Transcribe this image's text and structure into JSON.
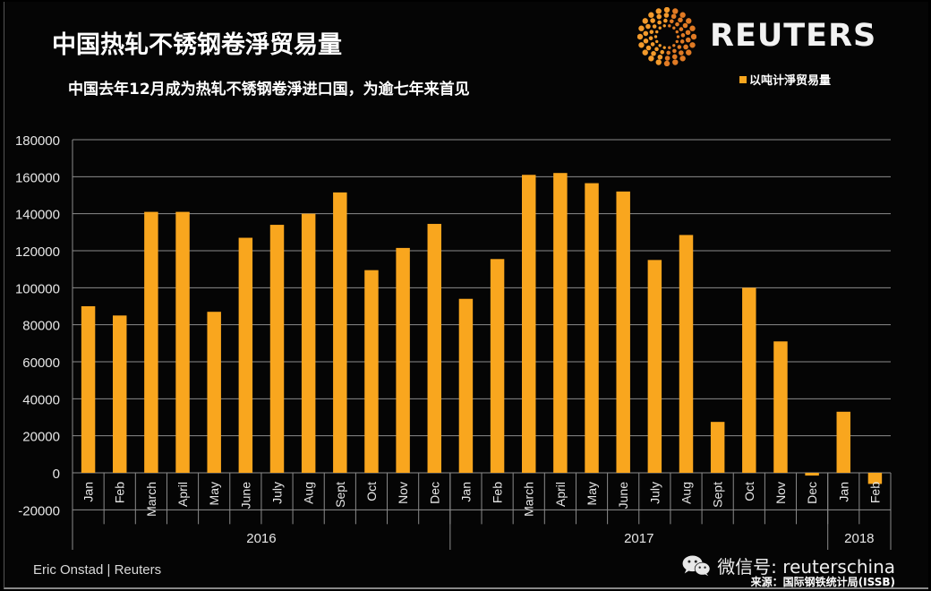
{
  "header": {
    "title": "中国热轧不锈钢卷淨贸易量",
    "subtitle": "中国去年12月成为热轧不锈钢卷淨进口国，为逾七年来首见",
    "brand": "REUTERS",
    "brand_icon": "reuters-dot-logo-icon"
  },
  "footer": {
    "credit": "Eric Onstad | Reuters",
    "wechat_label": "微信号: reuterschina",
    "wechat_icon": "wechat-icon",
    "source": "来源：国际钢铁统计局(ISSB)"
  },
  "colors": {
    "bar": "#F9A61E",
    "background": "#050505",
    "grid": "#8c8c8c",
    "text": "#ffffff"
  },
  "chart_data": {
    "type": "bar",
    "title": "中国热轧不锈钢卷淨贸易量",
    "subtitle": "中国去年12月成为热轧不锈钢卷淨进口国，为逾七年来首见",
    "xlabel": "",
    "ylabel": "",
    "ylim": [
      -20000,
      180000
    ],
    "yticks": [
      -20000,
      0,
      20000,
      40000,
      60000,
      80000,
      100000,
      120000,
      140000,
      160000,
      180000
    ],
    "grid": true,
    "legend": {
      "position": "top-right",
      "entries": [
        "以吨计淨贸易量"
      ]
    },
    "categories": [
      "Jan",
      "Feb",
      "March",
      "April",
      "May",
      "June",
      "July",
      "Aug",
      "Sept",
      "Oct",
      "Nov",
      "Dec",
      "Jan",
      "Feb",
      "March",
      "April",
      "May",
      "June",
      "July",
      "Aug",
      "Sept",
      "Oct",
      "Nov",
      "Dec",
      "Jan",
      "Feb"
    ],
    "groups": [
      {
        "label": "2016",
        "count": 12
      },
      {
        "label": "2017",
        "count": 12
      },
      {
        "label": "2018",
        "count": 2
      }
    ],
    "series": [
      {
        "name": "以吨计淨贸易量",
        "values": [
          90000,
          85000,
          141000,
          141000,
          87000,
          127000,
          134000,
          140000,
          151500,
          109500,
          121500,
          134500,
          94000,
          115500,
          161000,
          162000,
          156500,
          152000,
          115000,
          128500,
          27500,
          100000,
          71000,
          -1500,
          33000,
          -6000
        ]
      }
    ]
  }
}
